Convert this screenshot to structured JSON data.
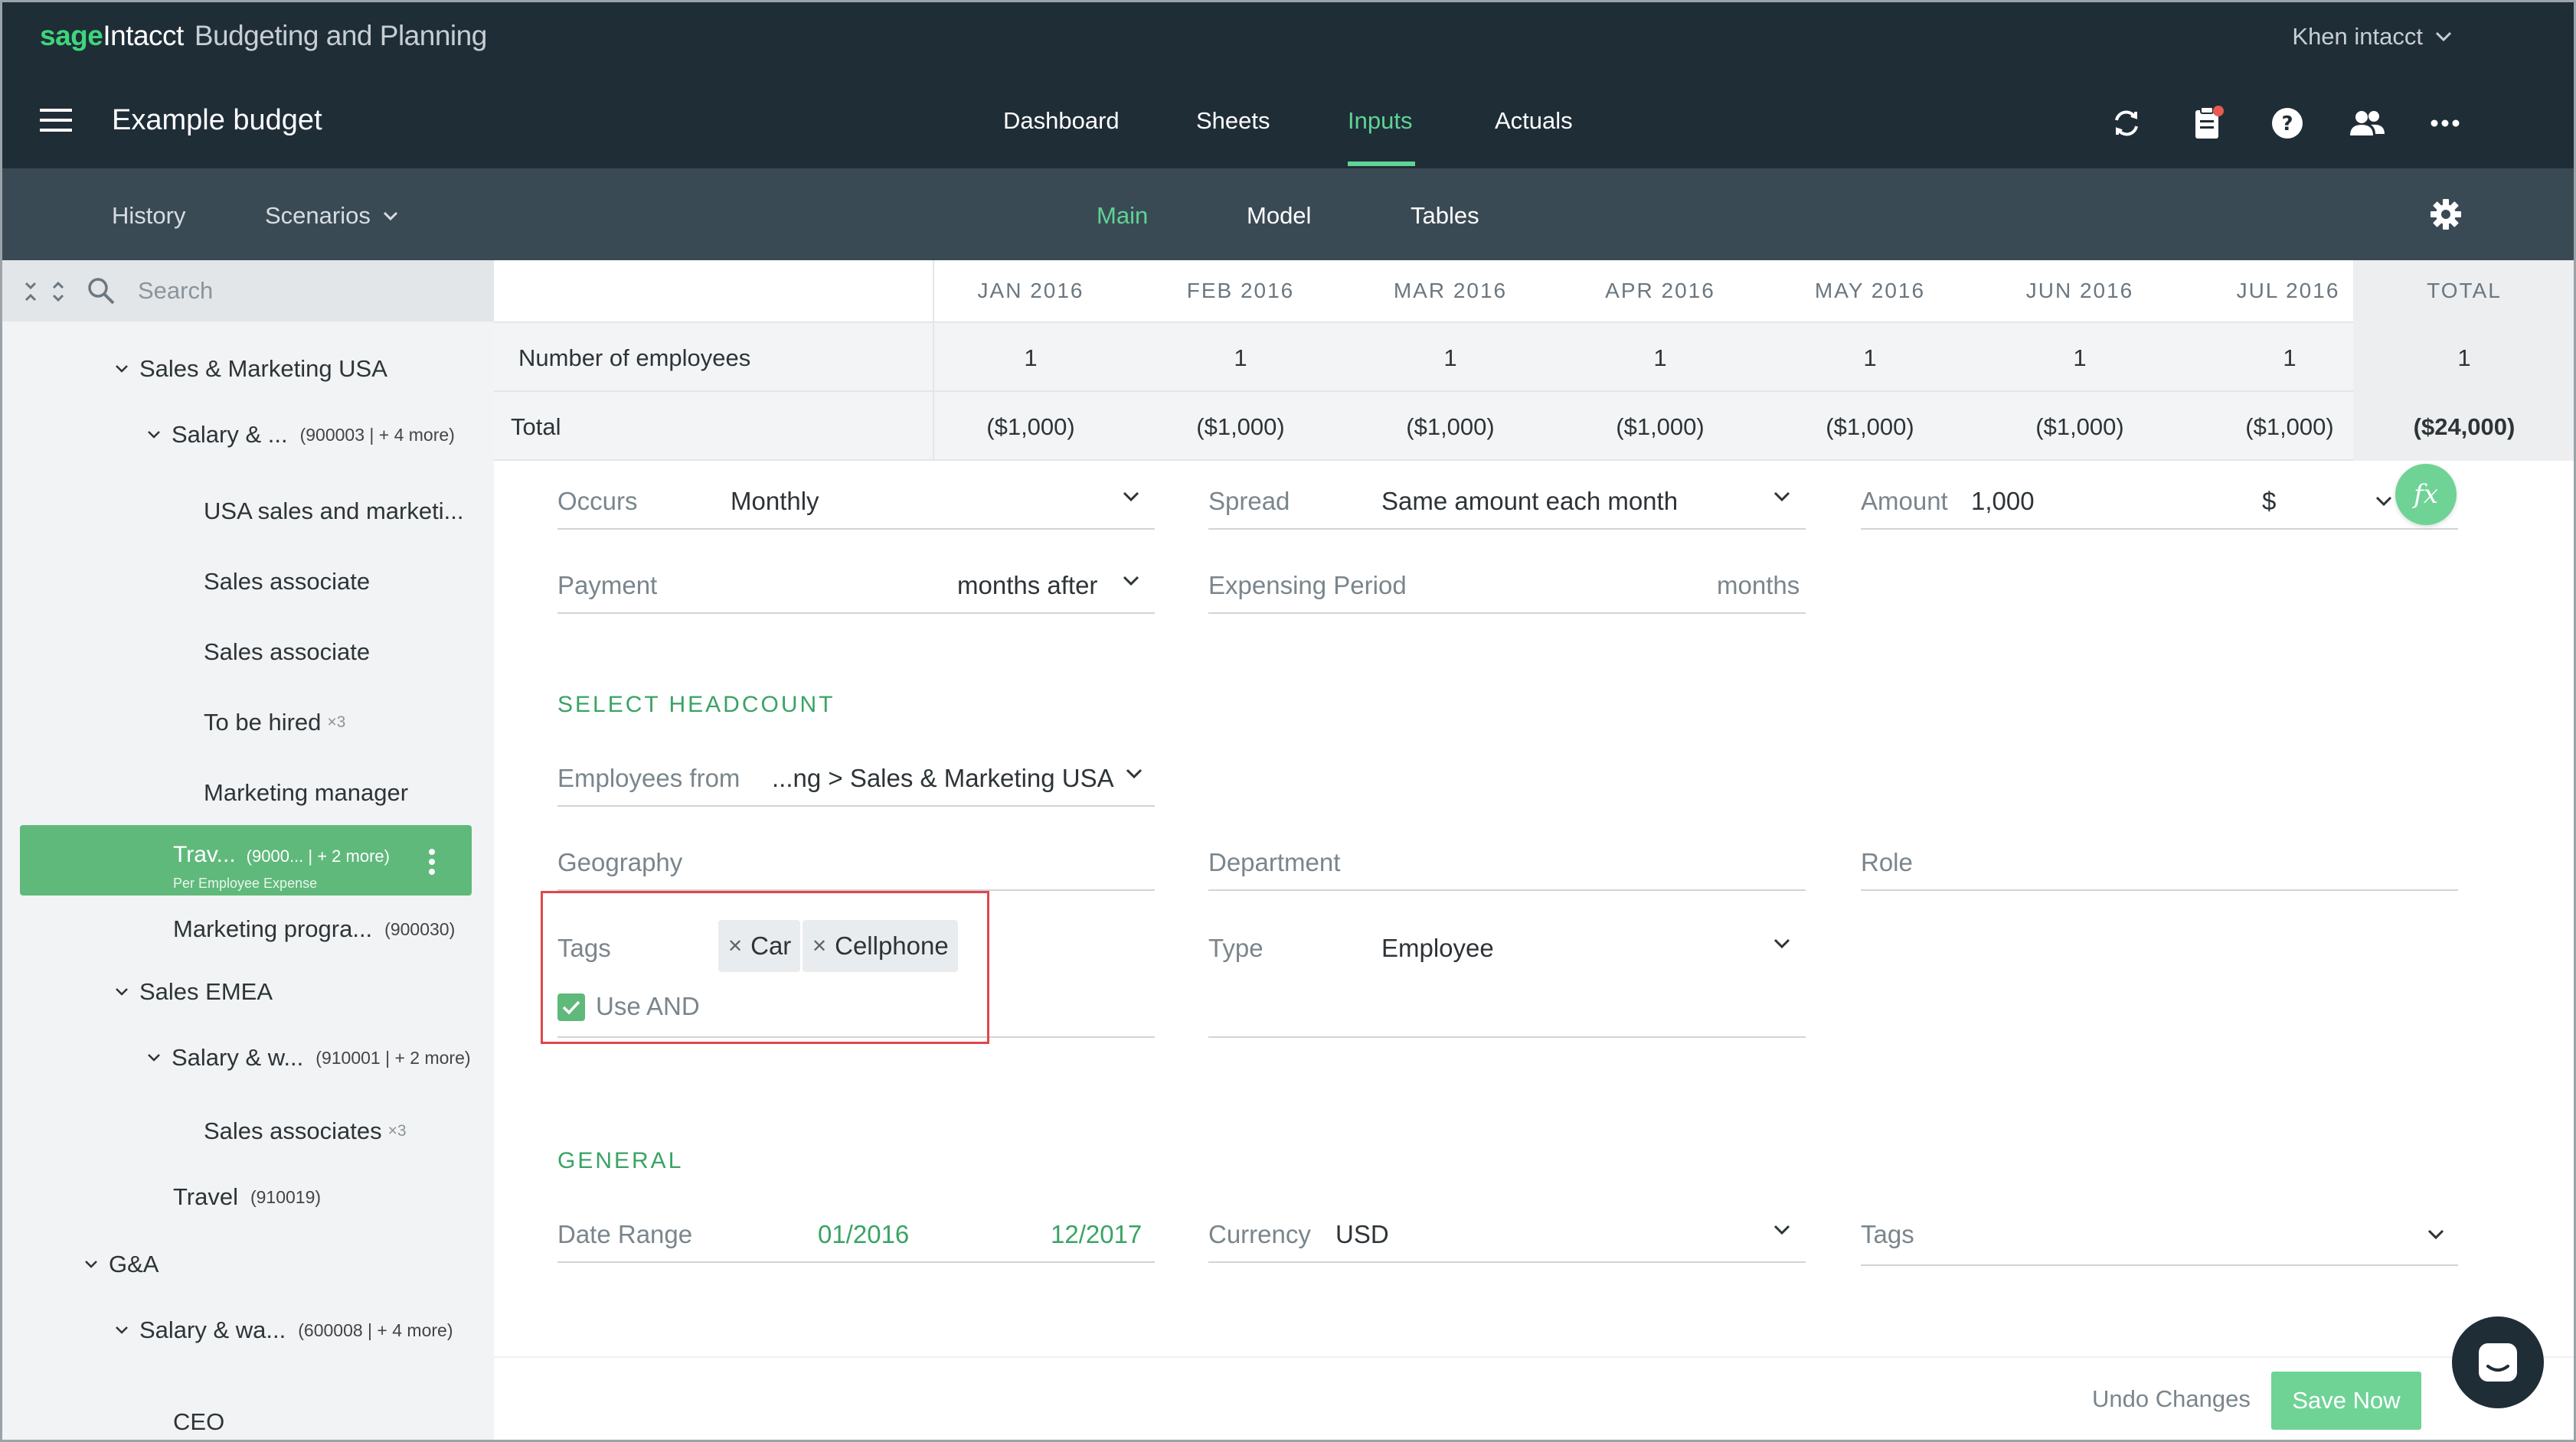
{
  "app": {
    "brand_sage": "sage",
    "brand_intacct": "Intacct",
    "brand_product": "Budgeting and Planning",
    "user": "Khen intacct",
    "budget_title": "Example budget"
  },
  "main_nav": {
    "dashboard": "Dashboard",
    "sheets": "Sheets",
    "inputs": "Inputs",
    "actuals": "Actuals",
    "active": "Inputs"
  },
  "sub_nav": {
    "history": "History",
    "scenarios": "Scenarios",
    "main": "Main",
    "model": "Model",
    "tables": "Tables"
  },
  "sidebar": {
    "search_placeholder": "Search",
    "items": [
      {
        "label": "Sales & Marketing USA",
        "code": "",
        "mult": ""
      },
      {
        "label": "Salary & ...",
        "code": "(900003 | + 4 more)",
        "mult": ""
      },
      {
        "label": "USA sales and marketi...",
        "code": "",
        "mult": ""
      },
      {
        "label": "Sales associate",
        "code": "",
        "mult": ""
      },
      {
        "label": "Sales associate",
        "code": "",
        "mult": ""
      },
      {
        "label": "To be hired",
        "code": "",
        "mult": "×3"
      },
      {
        "label": "Marketing manager",
        "code": "",
        "mult": ""
      },
      {
        "label": "Trav...",
        "code": "(9000... | + 2 more)",
        "mult": "",
        "sub": "Per Employee Expense"
      },
      {
        "label": "Marketing progra...",
        "code": "(900030)",
        "mult": ""
      },
      {
        "label": "Sales EMEA",
        "code": "",
        "mult": ""
      },
      {
        "label": "Salary & w...",
        "code": "(910001 | + 2 more)",
        "mult": ""
      },
      {
        "label": "Sales associates",
        "code": "",
        "mult": "×3"
      },
      {
        "label": "Travel",
        "code": "(910019)",
        "mult": ""
      },
      {
        "label": "G&A",
        "code": "",
        "mult": ""
      },
      {
        "label": "Salary & wa...",
        "code": "(600008 | + 4 more)",
        "mult": ""
      },
      {
        "label": "CEO",
        "code": "",
        "mult": ""
      }
    ]
  },
  "grid": {
    "months": [
      "JAN 2016",
      "FEB 2016",
      "MAR 2016",
      "APR 2016",
      "MAY 2016",
      "JUN 2016",
      "JUL 2016"
    ],
    "total_header": "TOTAL",
    "rows": [
      {
        "label": "Number of employees",
        "values": [
          "1",
          "1",
          "1",
          "1",
          "1",
          "1",
          "1"
        ],
        "total": "1"
      },
      {
        "label": "Total",
        "values": [
          "($1,000)",
          "($1,000)",
          "($1,000)",
          "($1,000)",
          "($1,000)",
          "($1,000)",
          "($1,000)"
        ],
        "total": "($24,000)"
      }
    ]
  },
  "form": {
    "occurs_label": "Occurs",
    "occurs_value": "Monthly",
    "spread_label": "Spread",
    "spread_value": "Same amount each month",
    "amount_label": "Amount",
    "amount_value": "1,000",
    "amount_currency": "$",
    "fx_label": "fx",
    "payment_label": "Payment",
    "payment_value": "months after",
    "expensing_label": "Expensing Period",
    "expensing_value": "months",
    "headcount_title": "SELECT HEADCOUNT",
    "employees_from_label": "Employees from",
    "employees_from_value": "...ng > Sales & Marketing USA",
    "geography_label": "Geography",
    "department_label": "Department",
    "role_label": "Role",
    "tags_label": "Tags",
    "tags": [
      "Car",
      "Cellphone"
    ],
    "use_and_label": "Use AND",
    "use_and_checked": true,
    "type_label": "Type",
    "type_value": "Employee",
    "general_title": "GENERAL",
    "date_range_label": "Date Range",
    "date_from": "01/2016",
    "date_to": "12/2017",
    "currency_label": "Currency",
    "currency_value": "USD",
    "general_tags_label": "Tags"
  },
  "footer": {
    "undo": "Undo Changes",
    "save": "Save Now"
  },
  "colors": {
    "topbar": "#1f2d37",
    "subbar": "#3a4a55",
    "accent": "#5ed394",
    "selected": "#5fb97b",
    "highlight": "#e0474c"
  }
}
